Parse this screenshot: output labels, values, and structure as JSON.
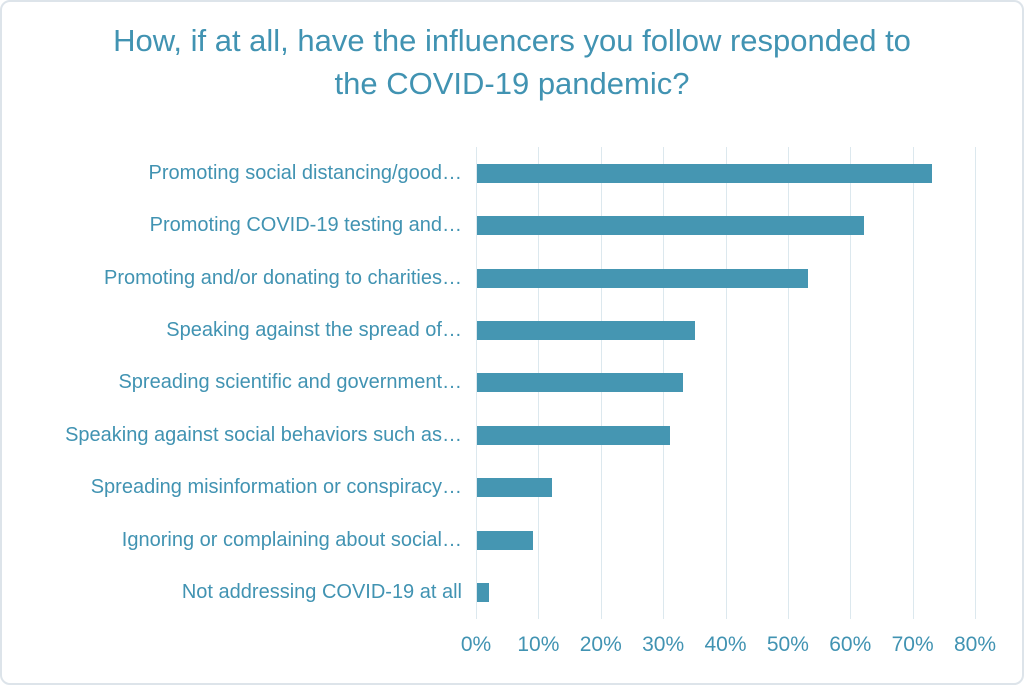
{
  "chart_data": {
    "type": "bar",
    "orientation": "horizontal",
    "title": "How, if at all, have the influencers you follow responded to the COVID-19 pandemic?",
    "categories": [
      "Promoting social distancing/good…",
      "Promoting COVID-19 testing and…",
      "Promoting and/or donating to charities…",
      "Speaking against the spread of…",
      "Spreading scientific and government…",
      "Speaking against social behaviors such as…",
      "Spreading misinformation or conspiracy…",
      "Ignoring or complaining about social…",
      "Not addressing COVID-19 at all"
    ],
    "values": [
      73,
      62,
      53,
      35,
      33,
      31,
      12,
      9,
      2
    ],
    "x_tick_values": [
      0,
      10,
      20,
      30,
      40,
      50,
      60,
      70,
      80
    ],
    "x_tick_labels": [
      "0%",
      "10%",
      "20%",
      "30%",
      "40%",
      "50%",
      "60%",
      "70%",
      "80%"
    ],
    "xlim": [
      0,
      80
    ],
    "grid": true,
    "legend": false,
    "colors": {
      "bar": "#4596b2",
      "text": "#4193b2",
      "gridline": "#dce8ee",
      "frame_border": "#dde4ea",
      "background": "#ffffff"
    }
  }
}
